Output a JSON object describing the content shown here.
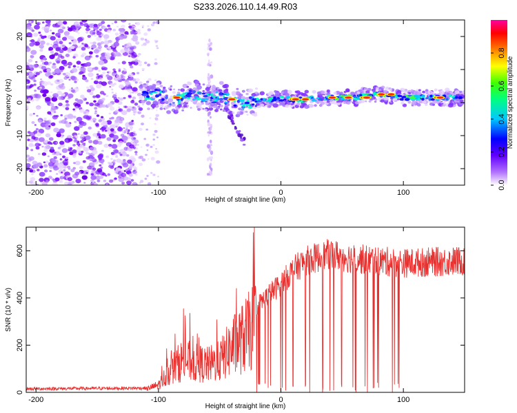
{
  "title": "S233.2026.110.14.49.R03",
  "chart_data": [
    {
      "type": "heatmap",
      "name": "spectrogram",
      "xlabel": "Height of straight line (km)",
      "ylabel": "Frequency (Hz)",
      "xlim": [
        -208,
        150
      ],
      "ylim": [
        -25,
        25
      ],
      "xticks": [
        -200,
        -100,
        0,
        100
      ],
      "yticks": [
        -20,
        -10,
        0,
        10,
        20
      ],
      "colorbar": {
        "label": "Normalized spectral amplitude",
        "range": [
          0,
          1
        ],
        "ticks": [
          "0.0",
          "0.2",
          "0.4",
          "0.6",
          "0.8"
        ],
        "colors": [
          "#ffffff",
          "#9a00ff",
          "#0000ff",
          "#00c8ff",
          "#00ff80",
          "#40ff00",
          "#ffff00",
          "#ff8000",
          "#ff0000",
          "#ff00a0"
        ]
      },
      "signal_track": {
        "x": [
          -115,
          -100,
          -90,
          -80,
          -70,
          -60,
          -50,
          -40,
          -30,
          -20,
          -10,
          0,
          10,
          20,
          40,
          60,
          80,
          100,
          120,
          150
        ],
        "freq": [
          2.0,
          2.5,
          0.8,
          1.5,
          2.5,
          1.0,
          2.0,
          0.5,
          -0.5,
          0.5,
          1.0,
          1.2,
          0.8,
          1.0,
          1.5,
          1.5,
          2.5,
          1.5,
          1.5,
          1.5
        ]
      }
    },
    {
      "type": "line",
      "name": "snr",
      "xlabel": "Height of straight line (km)",
      "ylabel": "SNR (10 * v/v)",
      "xlim": [
        -208,
        150
      ],
      "ylim": [
        0,
        700
      ],
      "xticks": [
        -200,
        -100,
        0,
        100
      ],
      "yticks": [
        0,
        200,
        400,
        600
      ],
      "color": "#e8312f",
      "envelope": {
        "x": [
          -208,
          -110,
          -100,
          -90,
          -80,
          -70,
          -60,
          -50,
          -40,
          -30,
          -20,
          -10,
          0,
          10,
          20,
          40,
          60,
          80,
          100,
          120,
          150
        ],
        "value": [
          15,
          18,
          40,
          120,
          180,
          160,
          150,
          170,
          250,
          300,
          380,
          430,
          480,
          540,
          580,
          610,
          590,
          580,
          570,
          575,
          580
        ]
      }
    }
  ]
}
